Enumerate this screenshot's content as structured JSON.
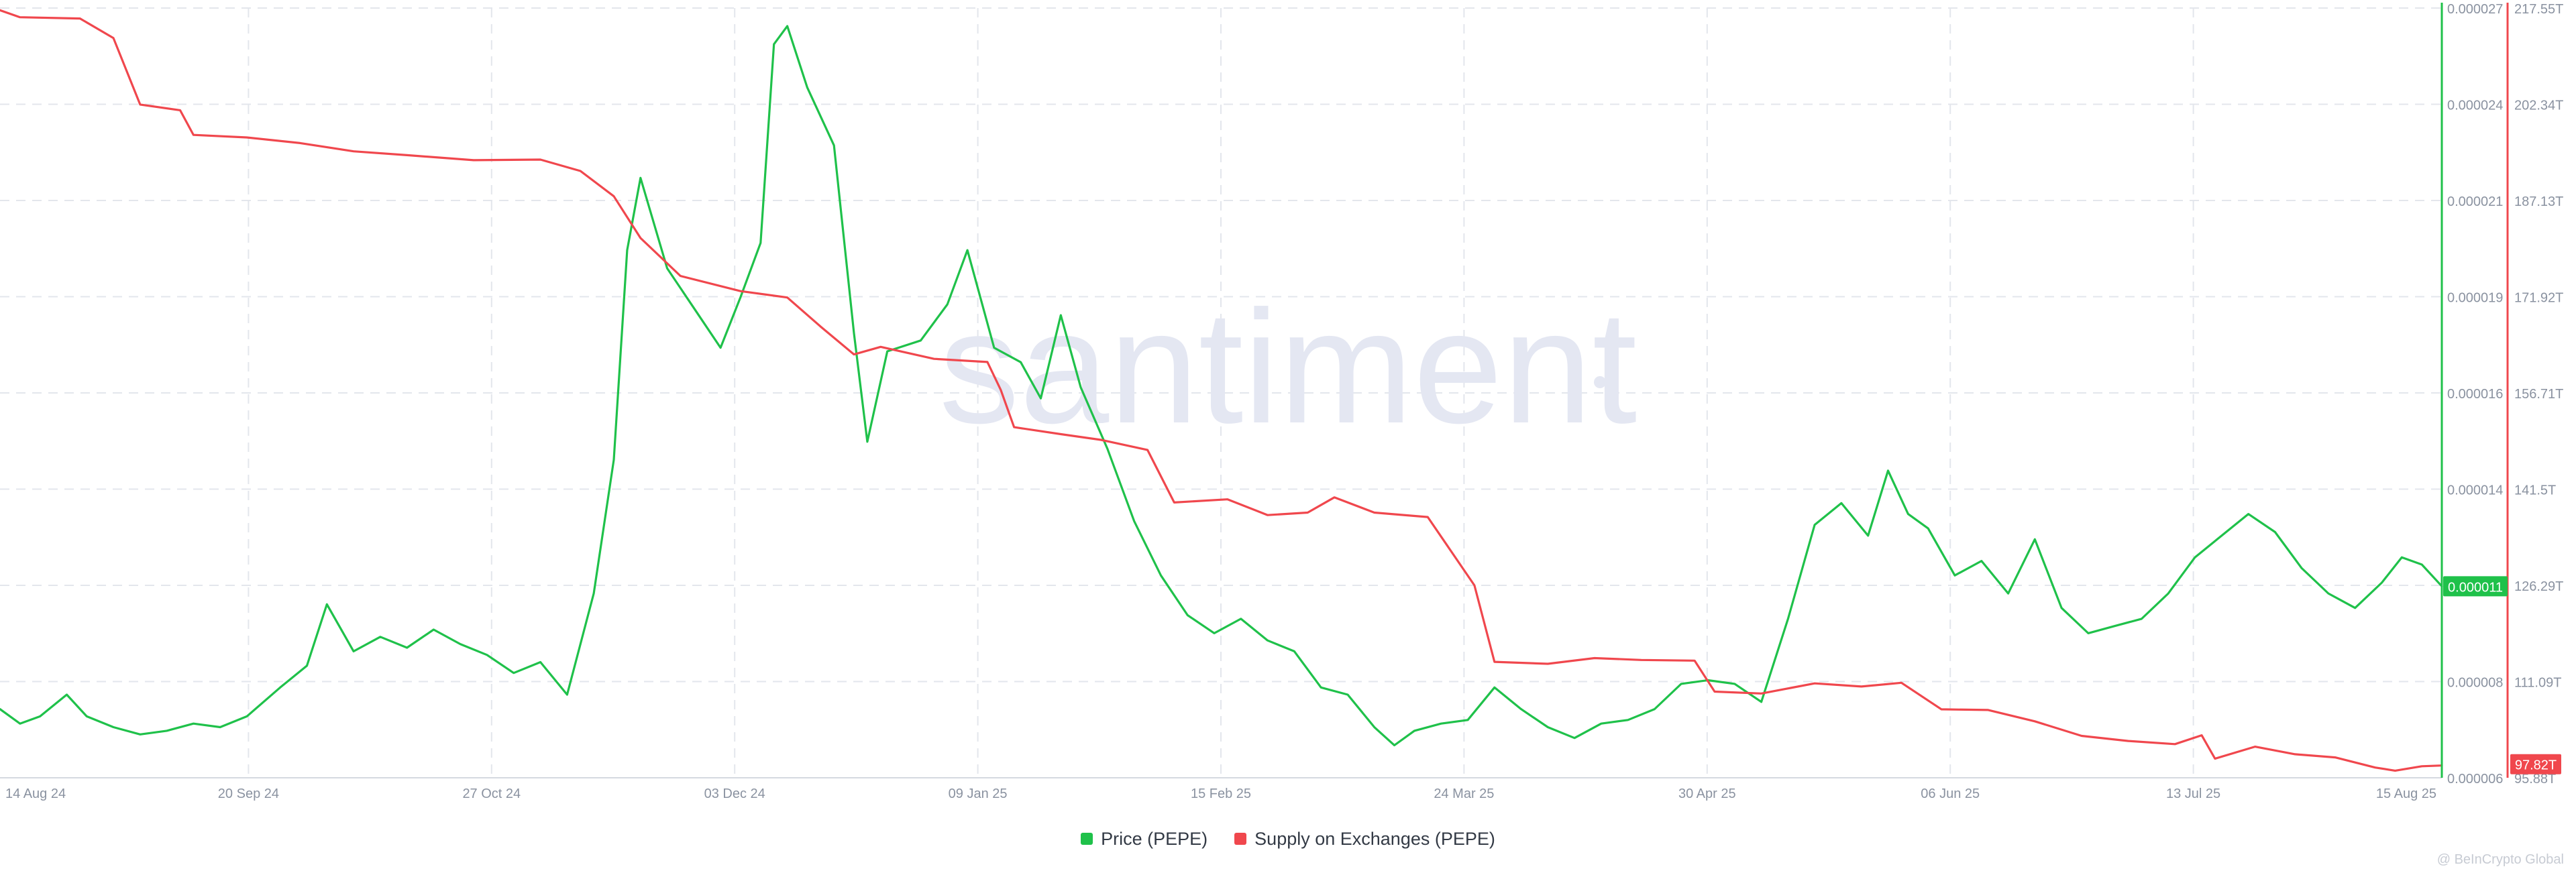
{
  "colors": {
    "price": "#1fc14a",
    "supply": "#f0474d",
    "grid": "#e3e6ec",
    "axis_text": "#8a92a0",
    "watermark": "#e4e7f2",
    "background": "#ffffff"
  },
  "watermark": "santiment",
  "footer": "@ BeInCrypto Global",
  "chart_data": {
    "type": "line",
    "x_ticks": [
      "14 Aug 24",
      "20 Sep 24",
      "27 Oct 24",
      "03 Dec 24",
      "09 Jan 25",
      "15 Feb 25",
      "24 Mar 25",
      "30 Apr 25",
      "06 Jun 25",
      "13 Jul 25",
      "15 Aug 25"
    ],
    "x_range": [
      "2024-08-14",
      "2025-08-15"
    ],
    "y_left": {
      "ticks": [
        "0.000027",
        "0.000024",
        "0.000021",
        "0.000019",
        "0.000016",
        "0.000014",
        "0.000011",
        "0.000008",
        "0.000006"
      ],
      "range": [
        5.7e-06,
        2.7e-05
      ]
    },
    "y_right": {
      "ticks": [
        "217.55T",
        "202.34T",
        "187.13T",
        "171.92T",
        "156.71T",
        "141.5T",
        "126.29T",
        "111.09T",
        "95.88T"
      ],
      "range": [
        95.88,
        217.55
      ]
    },
    "current_labels": {
      "price": "0.000011",
      "supply": "97.82T"
    },
    "legend_position": "bottom-center",
    "grid": true,
    "series": [
      {
        "name": "Price (PEPE)",
        "axis": "left",
        "color": "#1fc14a",
        "points": [
          [
            "2024-08-14",
            7.6e-06
          ],
          [
            "2024-08-17",
            7.2e-06
          ],
          [
            "2024-08-20",
            7.4e-06
          ],
          [
            "2024-08-24",
            8e-06
          ],
          [
            "2024-08-27",
            7.4e-06
          ],
          [
            "2024-08-31",
            7.1e-06
          ],
          [
            "2024-09-04",
            6.9e-06
          ],
          [
            "2024-09-08",
            7e-06
          ],
          [
            "2024-09-12",
            7.2e-06
          ],
          [
            "2024-09-16",
            7.1e-06
          ],
          [
            "2024-09-20",
            7.4e-06
          ],
          [
            "2024-09-25",
            8.2e-06
          ],
          [
            "2024-09-29",
            8.8e-06
          ],
          [
            "2024-10-02",
            1.05e-05
          ],
          [
            "2024-10-06",
            9.2e-06
          ],
          [
            "2024-10-10",
            9.6e-06
          ],
          [
            "2024-10-14",
            9.3e-06
          ],
          [
            "2024-10-18",
            9.8e-06
          ],
          [
            "2024-10-22",
            9.4e-06
          ],
          [
            "2024-10-26",
            9.1e-06
          ],
          [
            "2024-10-30",
            8.6e-06
          ],
          [
            "2024-11-03",
            8.9e-06
          ],
          [
            "2024-11-07",
            8e-06
          ],
          [
            "2024-11-11",
            1.08e-05
          ],
          [
            "2024-11-14",
            1.45e-05
          ],
          [
            "2024-11-16",
            2.03e-05
          ],
          [
            "2024-11-18",
            2.23e-05
          ],
          [
            "2024-11-22",
            1.98e-05
          ],
          [
            "2024-11-26",
            1.87e-05
          ],
          [
            "2024-11-30",
            1.76e-05
          ],
          [
            "2024-12-03",
            1.9e-05
          ],
          [
            "2024-12-06",
            2.05e-05
          ],
          [
            "2024-12-08",
            2.6e-05
          ],
          [
            "2024-12-10",
            2.65e-05
          ],
          [
            "2024-12-13",
            2.48e-05
          ],
          [
            "2024-12-17",
            2.32e-05
          ],
          [
            "2024-12-20",
            1.8e-05
          ],
          [
            "2024-12-22",
            1.5e-05
          ],
          [
            "2024-12-25",
            1.75e-05
          ],
          [
            "2024-12-30",
            1.78e-05
          ],
          [
            "2025-01-03",
            1.88e-05
          ],
          [
            "2025-01-06",
            2.03e-05
          ],
          [
            "2025-01-10",
            1.76e-05
          ],
          [
            "2025-01-14",
            1.72e-05
          ],
          [
            "2025-01-17",
            1.62e-05
          ],
          [
            "2025-01-20",
            1.85e-05
          ],
          [
            "2025-01-23",
            1.65e-05
          ],
          [
            "2025-01-27",
            1.48e-05
          ],
          [
            "2025-01-31",
            1.28e-05
          ],
          [
            "2025-02-04",
            1.13e-05
          ],
          [
            "2025-02-08",
            1.02e-05
          ],
          [
            "2025-02-12",
            9.7e-06
          ],
          [
            "2025-02-16",
            1.01e-05
          ],
          [
            "2025-02-20",
            9.5e-06
          ],
          [
            "2025-02-24",
            9.2e-06
          ],
          [
            "2025-02-28",
            8.2e-06
          ],
          [
            "2025-03-04",
            8e-06
          ],
          [
            "2025-03-08",
            7.1e-06
          ],
          [
            "2025-03-11",
            6.6e-06
          ],
          [
            "2025-03-14",
            7e-06
          ],
          [
            "2025-03-18",
            7.2e-06
          ],
          [
            "2025-03-22",
            7.3e-06
          ],
          [
            "2025-03-26",
            8.2e-06
          ],
          [
            "2025-03-30",
            7.6e-06
          ],
          [
            "2025-04-03",
            7.1e-06
          ],
          [
            "2025-04-07",
            6.8e-06
          ],
          [
            "2025-04-11",
            7.2e-06
          ],
          [
            "2025-04-15",
            7.3e-06
          ],
          [
            "2025-04-19",
            7.6e-06
          ],
          [
            "2025-04-23",
            8.3e-06
          ],
          [
            "2025-04-27",
            8.4e-06
          ],
          [
            "2025-05-01",
            8.3e-06
          ],
          [
            "2025-05-05",
            7.8e-06
          ],
          [
            "2025-05-09",
            1.01e-05
          ],
          [
            "2025-05-13",
            1.27e-05
          ],
          [
            "2025-05-17",
            1.33e-05
          ],
          [
            "2025-05-21",
            1.24e-05
          ],
          [
            "2025-05-24",
            1.42e-05
          ],
          [
            "2025-05-27",
            1.3e-05
          ],
          [
            "2025-05-30",
            1.26e-05
          ],
          [
            "2025-06-03",
            1.13e-05
          ],
          [
            "2025-06-07",
            1.17e-05
          ],
          [
            "2025-06-11",
            1.08e-05
          ],
          [
            "2025-06-15",
            1.23e-05
          ],
          [
            "2025-06-19",
            1.04e-05
          ],
          [
            "2025-06-23",
            9.7e-06
          ],
          [
            "2025-06-27",
            9.9e-06
          ],
          [
            "2025-07-01",
            1.01e-05
          ],
          [
            "2025-07-05",
            1.08e-05
          ],
          [
            "2025-07-09",
            1.18e-05
          ],
          [
            "2025-07-13",
            1.24e-05
          ],
          [
            "2025-07-17",
            1.3e-05
          ],
          [
            "2025-07-21",
            1.25e-05
          ],
          [
            "2025-07-25",
            1.15e-05
          ],
          [
            "2025-07-29",
            1.08e-05
          ],
          [
            "2025-08-02",
            1.04e-05
          ],
          [
            "2025-08-06",
            1.11e-05
          ],
          [
            "2025-08-09",
            1.18e-05
          ],
          [
            "2025-08-12",
            1.16e-05
          ],
          [
            "2025-08-15",
            1.1e-05
          ]
        ]
      },
      {
        "name": "Supply on Exchanges (PEPE)",
        "axis": "right",
        "color": "#f0474d",
        "points": [
          [
            "2024-08-14",
            217.2
          ],
          [
            "2024-08-17",
            216.1
          ],
          [
            "2024-08-26",
            215.9
          ],
          [
            "2024-08-31",
            212.8
          ],
          [
            "2024-09-04",
            202.3
          ],
          [
            "2024-09-10",
            201.4
          ],
          [
            "2024-09-12",
            197.5
          ],
          [
            "2024-09-20",
            197.1
          ],
          [
            "2024-09-28",
            196.2
          ],
          [
            "2024-10-06",
            194.9
          ],
          [
            "2024-10-14",
            194.3
          ],
          [
            "2024-10-24",
            193.5
          ],
          [
            "2024-11-03",
            193.6
          ],
          [
            "2024-11-09",
            191.8
          ],
          [
            "2024-11-14",
            187.8
          ],
          [
            "2024-11-18",
            181.2
          ],
          [
            "2024-11-24",
            175.2
          ],
          [
            "2024-12-03",
            172.8
          ],
          [
            "2024-12-10",
            171.8
          ],
          [
            "2024-12-15",
            167.2
          ],
          [
            "2024-12-20",
            162.8
          ],
          [
            "2024-12-24",
            164.0
          ],
          [
            "2025-01-01",
            162.1
          ],
          [
            "2025-01-09",
            161.6
          ],
          [
            "2025-01-11",
            157.2
          ],
          [
            "2025-01-13",
            151.3
          ],
          [
            "2025-01-20",
            150.2
          ],
          [
            "2025-01-26",
            149.3
          ],
          [
            "2025-02-02",
            147.7
          ],
          [
            "2025-02-06",
            139.4
          ],
          [
            "2025-02-14",
            139.9
          ],
          [
            "2025-02-20",
            137.4
          ],
          [
            "2025-02-26",
            137.8
          ],
          [
            "2025-03-02",
            140.2
          ],
          [
            "2025-03-08",
            137.8
          ],
          [
            "2025-03-16",
            137.1
          ],
          [
            "2025-03-23",
            126.3
          ],
          [
            "2025-03-26",
            114.2
          ],
          [
            "2025-04-03",
            113.9
          ],
          [
            "2025-04-10",
            114.8
          ],
          [
            "2025-04-17",
            114.5
          ],
          [
            "2025-04-25",
            114.4
          ],
          [
            "2025-04-28",
            109.5
          ],
          [
            "2025-05-05",
            109.2
          ],
          [
            "2025-05-13",
            110.8
          ],
          [
            "2025-05-20",
            110.3
          ],
          [
            "2025-05-26",
            110.9
          ],
          [
            "2025-06-01",
            106.7
          ],
          [
            "2025-06-08",
            106.6
          ],
          [
            "2025-06-15",
            104.8
          ],
          [
            "2025-06-22",
            102.5
          ],
          [
            "2025-06-29",
            101.7
          ],
          [
            "2025-07-06",
            101.2
          ],
          [
            "2025-07-10",
            102.6
          ],
          [
            "2025-07-12",
            98.9
          ],
          [
            "2025-07-18",
            100.8
          ],
          [
            "2025-07-24",
            99.6
          ],
          [
            "2025-07-30",
            99.1
          ],
          [
            "2025-08-05",
            97.5
          ],
          [
            "2025-08-08",
            97.0
          ],
          [
            "2025-08-12",
            97.7
          ],
          [
            "2025-08-15",
            97.82
          ]
        ]
      }
    ]
  }
}
